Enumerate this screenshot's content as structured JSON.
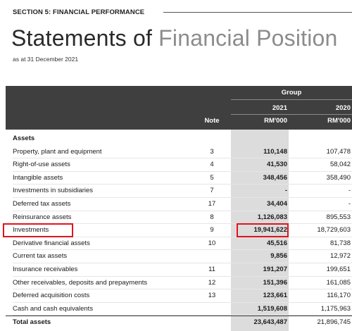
{
  "section_label": "SECTION 5: FINANCIAL PERFORMANCE",
  "title_dark": "Statements of",
  "title_light": "Financial Position",
  "subtitle": "as at 31 December 2021",
  "table": {
    "header": {
      "group": "Group",
      "note": "Note",
      "year_2021": "2021",
      "year_2020": "2020",
      "unit_2021": "RM'000",
      "unit_2020": "RM'000"
    },
    "rows": [
      {
        "label": "Assets",
        "note": "",
        "v2021": "",
        "v2020": "",
        "kind": "section"
      },
      {
        "label": "Property, plant and equipment",
        "note": "3",
        "v2021": "110,148",
        "v2020": "107,478"
      },
      {
        "label": "Right-of-use assets",
        "note": "4",
        "v2021": "41,530",
        "v2020": "58,042"
      },
      {
        "label": "Intangible assets",
        "note": "5",
        "v2021": "348,456",
        "v2020": "358,490"
      },
      {
        "label": "Investments in subsidiaries",
        "note": "7",
        "v2021": "-",
        "v2020": "-"
      },
      {
        "label": "Deferred tax assets",
        "note": "17",
        "v2021": "34,404",
        "v2020": "-"
      },
      {
        "label": "Reinsurance assets",
        "note": "8",
        "v2021": "1,126,083",
        "v2020": "895,553"
      },
      {
        "label": "Investments",
        "note": "9",
        "v2021": "19,941,622",
        "v2020": "18,729,603"
      },
      {
        "label": "Derivative financial assets",
        "note": "10",
        "v2021": "45,516",
        "v2020": "81,738"
      },
      {
        "label": "Current tax assets",
        "note": "",
        "v2021": "9,856",
        "v2020": "12,972"
      },
      {
        "label": "Insurance receivables",
        "note": "11",
        "v2021": "191,207",
        "v2020": "199,651"
      },
      {
        "label": "Other receivables, deposits and prepayments",
        "note": "12",
        "v2021": "151,396",
        "v2020": "161,085"
      },
      {
        "label": "Deferred acquisition costs",
        "note": "13",
        "v2021": "123,661",
        "v2020": "116,170"
      },
      {
        "label": "Cash and cash equivalents",
        "note": "",
        "v2021": "1,519,608",
        "v2020": "1,175,963"
      },
      {
        "label": "Total assets",
        "note": "",
        "v2021": "23,643,487",
        "v2020": "21,896,745",
        "kind": "total"
      }
    ]
  }
}
